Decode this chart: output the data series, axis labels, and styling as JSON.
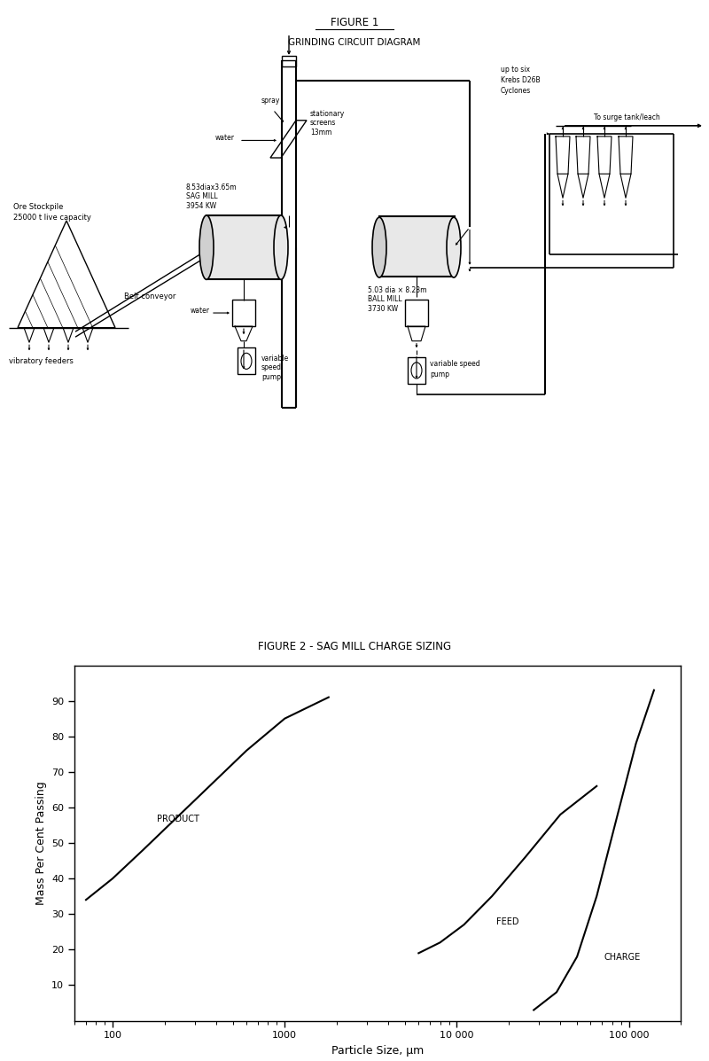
{
  "fig1_title": "FIGURE 1",
  "fig1_subtitle": "GRINDING CIRCUIT DIAGRAM",
  "fig2_title": "FIGURE 2 - SAG MILL CHARGE SIZING",
  "fig2_xlabel": "Particle Size, μm",
  "fig2_ylabel": "Mass Per Cent Passing",
  "product_x": [
    70,
    100,
    150,
    300,
    600,
    1000,
    1800
  ],
  "product_y": [
    34,
    40,
    48,
    62,
    76,
    85,
    91
  ],
  "feed_x": [
    6000,
    8000,
    11000,
    16000,
    25000,
    40000,
    65000
  ],
  "feed_y": [
    19,
    22,
    27,
    35,
    46,
    58,
    66
  ],
  "charge_x": [
    28000,
    38000,
    50000,
    65000,
    85000,
    110000,
    140000
  ],
  "charge_y": [
    3,
    8,
    18,
    35,
    57,
    78,
    93
  ],
  "bg_color": "#ffffff",
  "line_color": "#000000"
}
